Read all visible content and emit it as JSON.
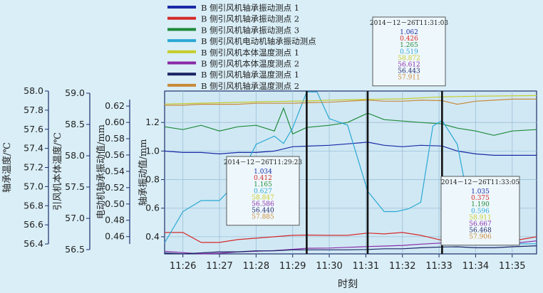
{
  "chart_data": {
    "type": "line",
    "xlabel": "时刻",
    "xticks": [
      "11:26",
      "11:27",
      "11:28",
      "11:29",
      "11:30",
      "11:31",
      "11:32",
      "11:33",
      "11:34",
      "11:35"
    ],
    "xlim": [
      "11:25:30",
      "11:35:40"
    ],
    "grid": true,
    "legend_placement": "top",
    "axes": [
      {
        "id": "vib",
        "label": "轴承振动值/mm",
        "ticks": [
          "0.4",
          "0.6",
          "0.8",
          "1.0",
          "1.2"
        ],
        "lim": [
          0.28,
          1.42
        ]
      },
      {
        "id": "motor",
        "label": "电动机轴承振动值/mm",
        "ticks": [
          "0.46",
          "0.48",
          "0.50",
          "0.52",
          "0.54",
          "0.56",
          "0.58",
          "0.60",
          "0.62"
        ],
        "lim": [
          0.451,
          0.628
        ]
      },
      {
        "id": "body",
        "label": "引风机本体温度/℃",
        "ticks": [
          "56.5",
          "57.0",
          "57.5",
          "58.0",
          "58.5",
          "59.0"
        ],
        "lim": [
          56.5,
          59.0
        ]
      },
      {
        "id": "bear",
        "label": "轴承温度/℃",
        "ticks": [
          "56.4",
          "56.6",
          "56.8",
          "57.0",
          "57.2",
          "57.4",
          "57.6",
          "57.8",
          "58.0"
        ],
        "lim": [
          56.4,
          58.0
        ]
      }
    ],
    "series": [
      {
        "name": "B 侧引风机轴承振动测点 1",
        "color": "#1a2aa6",
        "axis": "vib",
        "x": [
          "11:25:30",
          "11:26:00",
          "11:26:30",
          "11:27:00",
          "11:27:30",
          "11:28:00",
          "11:28:30",
          "11:29:00",
          "11:29:23",
          "11:30:00",
          "11:30:30",
          "11:31:03",
          "11:31:30",
          "11:32:00",
          "11:32:30",
          "11:33:05",
          "11:33:30",
          "11:34:00",
          "11:34:30",
          "11:35:00",
          "11:35:40"
        ],
        "y": [
          1.0,
          0.99,
          0.99,
          0.98,
          0.99,
          0.99,
          1.0,
          1.03,
          1.034,
          1.04,
          1.05,
          1.062,
          1.04,
          1.03,
          1.04,
          1.035,
          1.0,
          0.98,
          0.97,
          0.97,
          0.97
        ]
      },
      {
        "name": "B 侧引风机轴承振动测点 2",
        "color": "#d42a2a",
        "axis": "vib",
        "x": [
          "11:25:30",
          "11:26:00",
          "11:26:30",
          "11:27:00",
          "11:27:30",
          "11:28:00",
          "11:28:30",
          "11:29:00",
          "11:29:23",
          "11:30:00",
          "11:30:30",
          "11:31:03",
          "11:31:30",
          "11:32:00",
          "11:32:30",
          "11:33:05",
          "11:33:30",
          "11:34:00",
          "11:34:30",
          "11:35:00",
          "11:35:40"
        ],
        "y": [
          0.43,
          0.43,
          0.36,
          0.36,
          0.38,
          0.39,
          0.4,
          0.41,
          0.412,
          0.41,
          0.41,
          0.426,
          0.42,
          0.43,
          0.41,
          0.375,
          0.37,
          0.36,
          0.36,
          0.37,
          0.4
        ]
      },
      {
        "name": "B 侧引风机轴承振动测点 3",
        "color": "#1f8a3a",
        "axis": "vib",
        "x": [
          "11:25:30",
          "11:26:00",
          "11:26:30",
          "11:27:00",
          "11:27:30",
          "11:28:00",
          "11:28:30",
          "11:28:45",
          "11:29:00",
          "11:29:23",
          "11:30:00",
          "11:30:30",
          "11:31:03",
          "11:31:30",
          "11:32:00",
          "11:32:30",
          "11:33:05",
          "11:33:30",
          "11:34:00",
          "11:34:30",
          "11:35:00",
          "11:35:40"
        ],
        "y": [
          1.17,
          1.15,
          1.18,
          1.14,
          1.17,
          1.18,
          1.14,
          1.3,
          1.12,
          1.165,
          1.18,
          1.2,
          1.265,
          1.22,
          1.21,
          1.2,
          1.19,
          1.16,
          1.14,
          1.11,
          1.14,
          1.15
        ]
      },
      {
        "name": "B 侧引风机电动机轴承振动测点",
        "color": "#2aa8d4",
        "axis": "motor",
        "x": [
          "11:25:30",
          "11:26:00",
          "11:26:30",
          "11:27:00",
          "11:27:30",
          "11:28:00",
          "11:28:30",
          "11:28:45",
          "11:29:00",
          "11:29:23",
          "11:29:40",
          "11:30:00",
          "11:30:30",
          "11:31:03",
          "11:31:30",
          "11:31:50",
          "11:32:10",
          "11:32:30",
          "11:32:50",
          "11:33:05",
          "11:33:30",
          "11:34:00",
          "11:34:30",
          "11:35:00",
          "11:35:40"
        ],
        "y": [
          0.463,
          0.497,
          0.509,
          0.509,
          0.53,
          0.57,
          0.579,
          0.571,
          0.588,
          0.627,
          0.627,
          0.598,
          0.591,
          0.519,
          0.497,
          0.497,
          0.5,
          0.507,
          0.59,
          0.596,
          0.57,
          0.468,
          0.464,
          0.462,
          0.462
        ]
      },
      {
        "name": "B 侧引风机本体温度测点 1",
        "color": "#c6cc2a",
        "axis": "body",
        "x": [
          "11:25:30",
          "11:27:00",
          "11:28:30",
          "11:29:23",
          "11:30:00",
          "11:31:03",
          "11:32:00",
          "11:33:05",
          "11:34:00",
          "11:35:40"
        ],
        "y": [
          58.8,
          58.82,
          58.84,
          58.847,
          58.86,
          58.872,
          58.88,
          58.911,
          58.92,
          58.93
        ]
      },
      {
        "name": "B 侧引风机本体温度测点 2",
        "color": "#8a2aa8",
        "axis": "body",
        "x": [
          "11:25:30",
          "11:26:00",
          "11:26:30",
          "11:27:00",
          "11:27:30",
          "11:28:00",
          "11:28:30",
          "11:29:00",
          "11:29:23",
          "11:30:00",
          "11:30:30",
          "11:31:03",
          "11:31:30",
          "11:32:00",
          "11:32:30",
          "11:33:05",
          "11:33:30",
          "11:34:00",
          "11:34:30",
          "11:35:00",
          "11:35:40"
        ],
        "y": [
          56.54,
          56.52,
          56.5,
          56.51,
          56.53,
          56.54,
          56.55,
          56.57,
          56.586,
          56.59,
          56.6,
          56.612,
          56.62,
          56.63,
          56.65,
          56.667,
          56.65,
          56.66,
          56.67,
          56.66,
          56.7
        ]
      },
      {
        "name": "B 侧引风机轴承温度测点 1",
        "color": "#1c2466",
        "axis": "bear",
        "x": [
          "11:25:30",
          "11:26:00",
          "11:26:30",
          "11:27:00",
          "11:27:30",
          "11:28:00",
          "11:28:30",
          "11:29:00",
          "11:29:23",
          "11:30:00",
          "11:30:30",
          "11:31:03",
          "11:31:30",
          "11:32:00",
          "11:32:30",
          "11:33:05",
          "11:33:30",
          "11:34:00",
          "11:34:30",
          "11:35:00",
          "11:35:40"
        ],
        "y": [
          56.41,
          56.4,
          56.41,
          56.42,
          56.42,
          56.43,
          56.43,
          56.44,
          56.44,
          56.44,
          56.44,
          56.443,
          56.45,
          56.45,
          56.46,
          56.468,
          56.47,
          56.46,
          56.46,
          56.47,
          56.48
        ]
      },
      {
        "name": "B 侧引风机轴承温度测点 2",
        "color": "#c88a3a",
        "axis": "bear",
        "x": [
          "11:25:30",
          "11:26:00",
          "11:26:30",
          "11:27:00",
          "11:27:30",
          "11:28:00",
          "11:28:30",
          "11:29:00",
          "11:29:23",
          "11:30:00",
          "11:30:30",
          "11:31:03",
          "11:31:30",
          "11:32:00",
          "11:32:30",
          "11:33:05",
          "11:33:30",
          "11:34:00",
          "11:34:30",
          "11:35:00",
          "11:35:40"
        ],
        "y": [
          57.86,
          57.86,
          57.87,
          57.87,
          57.87,
          57.88,
          57.88,
          57.88,
          57.885,
          57.89,
          57.9,
          57.911,
          57.9,
          57.9,
          57.91,
          57.906,
          57.87,
          57.9,
          57.91,
          57.92,
          57.92
        ]
      }
    ],
    "cursors": [
      {
        "time": "11:29:23",
        "label": "2014－12－26T11:29:23",
        "values": [
          "1.034",
          "0.412",
          "1.165",
          "0.627",
          "58.847",
          "56.586",
          "56.440",
          "57.885"
        ],
        "box": "left"
      },
      {
        "time": "11:31:03",
        "label": "2014－12－26T11:31:03",
        "values": [
          "1.062",
          "0.426",
          "1.265",
          "0.519",
          "58.872",
          "56.612",
          "56.443",
          "57.911"
        ],
        "box": "top"
      },
      {
        "time": "11:33:05",
        "label": "2014－12－26T11:33:05",
        "values": [
          "1.035",
          "0.375",
          "1.190",
          "0.596",
          "58.911",
          "56.667",
          "56.468",
          "57.906"
        ],
        "box": "right"
      }
    ]
  }
}
